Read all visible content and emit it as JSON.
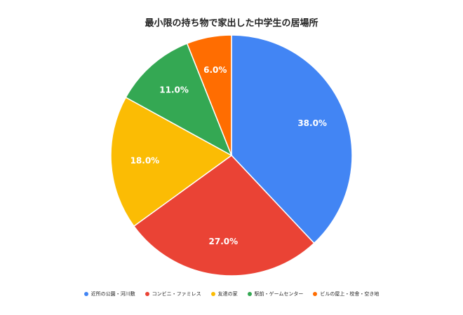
{
  "chart_data": {
    "type": "pie",
    "title": "最小限の持ち物で家出した中学生の居場所",
    "legend_position": "bottom",
    "slices": [
      {
        "name": "近所の公園・河川敷",
        "value": 38.0,
        "label": "38.0%",
        "color": "#4285F4"
      },
      {
        "name": "コンビニ・ファミレス",
        "value": 27.0,
        "label": "27.0%",
        "color": "#EA4335"
      },
      {
        "name": "友達の家",
        "value": 18.0,
        "label": "18.0%",
        "color": "#FBBC04"
      },
      {
        "name": "駅前・ゲームセンター",
        "value": 11.0,
        "label": "11.0%",
        "color": "#34A853"
      },
      {
        "name": "ビルの屋上・校舎・空き地",
        "value": 6.0,
        "label": "6.0%",
        "color": "#FF6D01"
      }
    ]
  }
}
